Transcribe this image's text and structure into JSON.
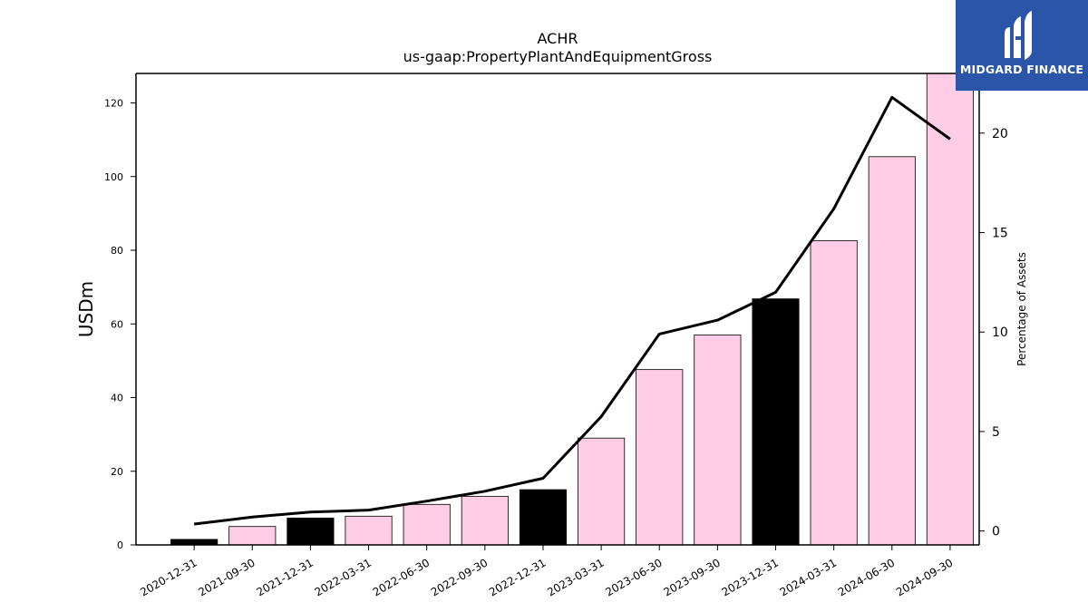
{
  "chart_data": {
    "type": "bar",
    "title": "ACHR",
    "subtitle": "us-gaap:PropertyPlantAndEquipmentGross",
    "ylabel": "USDm",
    "y2label": "Percentage of Assets",
    "ylim": [
      0,
      128
    ],
    "y2lim": [
      -0.7,
      23.0
    ],
    "yticks": [
      0,
      20,
      40,
      60,
      80,
      100,
      120
    ],
    "y2ticks": [
      0,
      5,
      10,
      15,
      20
    ],
    "categories": [
      "2020-12-31",
      "2021-09-30",
      "2021-12-31",
      "2022-03-31",
      "2022-06-30",
      "2022-09-30",
      "2022-12-31",
      "2023-03-31",
      "2023-06-30",
      "2023-09-30",
      "2023-12-31",
      "2024-03-31",
      "2024-06-30",
      "2024-09-30"
    ],
    "series": [
      {
        "type": "bar",
        "axis": "left",
        "values": [
          1.5,
          5.0,
          7.3,
          7.8,
          11.0,
          13.2,
          15.0,
          29.0,
          47.6,
          57.0,
          66.8,
          82.6,
          105.4,
          128.5
        ],
        "bar_colors": [
          "#000000",
          "#fccde5",
          "#000000",
          "#fccde5",
          "#fccde5",
          "#fccde5",
          "#000000",
          "#fccde5",
          "#fccde5",
          "#fccde5",
          "#000000",
          "#fccde5",
          "#fccde5",
          "#fccde5"
        ]
      },
      {
        "type": "line",
        "axis": "right",
        "color": "#000000",
        "values": [
          0.35,
          0.7,
          0.95,
          1.05,
          1.5,
          2.0,
          2.65,
          5.75,
          9.9,
          10.6,
          12.0,
          16.2,
          21.8,
          19.7
        ]
      }
    ]
  },
  "logo": {
    "text": "MIDGARD FINANCE"
  }
}
